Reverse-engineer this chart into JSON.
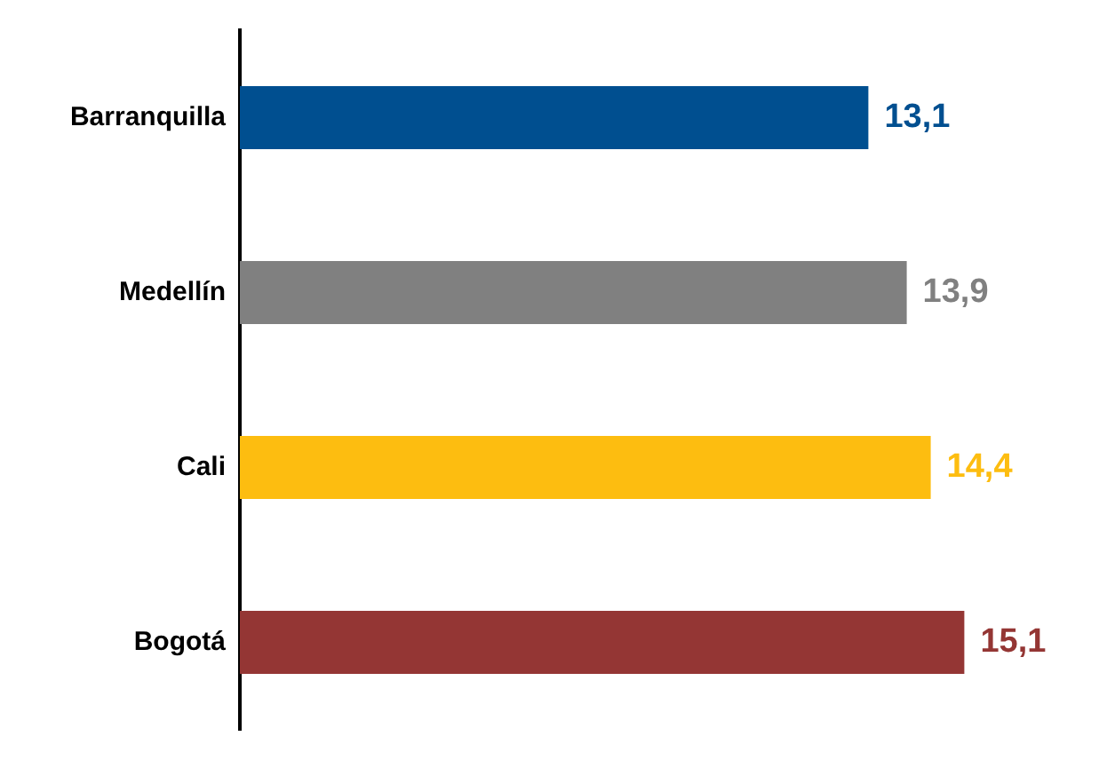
{
  "chart_data": {
    "type": "bar",
    "orientation": "horizontal",
    "categories": [
      "Barranquilla",
      "Medellín",
      "Cali",
      "Bogotá"
    ],
    "values": [
      13.1,
      13.9,
      14.4,
      15.1
    ],
    "colors": [
      "#004f90",
      "#808080",
      "#fdbd10",
      "#943634"
    ],
    "value_labels": [
      "13,1",
      "13,9",
      "14,4",
      "15,1"
    ],
    "legend": false,
    "tick_labels": "y"
  }
}
